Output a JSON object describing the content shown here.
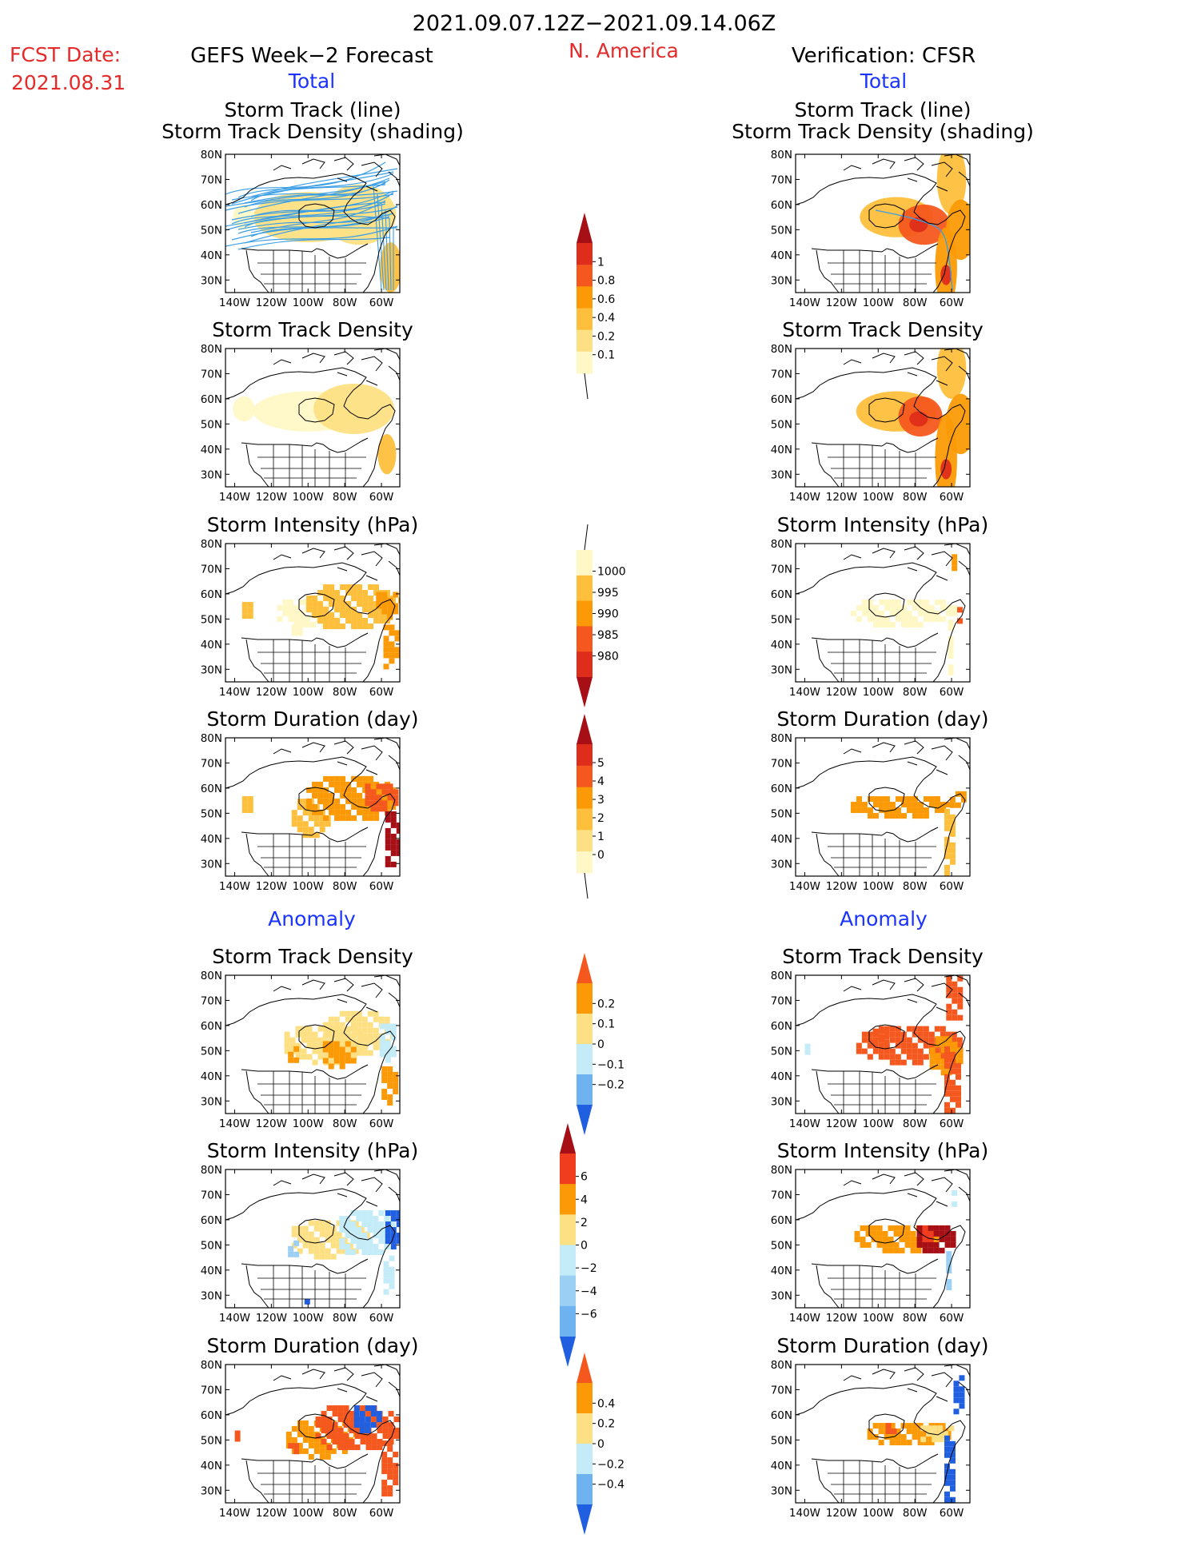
{
  "header": {
    "date_range": "2021.09.07.12Z−2021.09.14.06Z",
    "region": "N. America",
    "fcst_label": "FCST Date:",
    "fcst_date": "2021.08.31",
    "left_title": "GEFS Week−2 Forecast",
    "right_title": "Verification: CFSR"
  },
  "sections": {
    "total": "Total",
    "anomaly": "Anomaly"
  },
  "panel_titles": {
    "track": [
      "Storm Track (line)",
      "Storm Track Density (shading)"
    ],
    "density": "Storm Track Density",
    "intensity": "Storm Intensity (hPa)",
    "duration": "Storm Duration (day)"
  },
  "map_ticks": {
    "lat": [
      "80N",
      "70N",
      "60N",
      "50N",
      "40N",
      "30N"
    ],
    "lon": [
      "140W",
      "120W",
      "100W",
      "80W",
      "60W"
    ]
  },
  "colorbars": [
    {
      "id": "density_total",
      "labels": [
        "1",
        "0.8",
        "0.6",
        "0.4",
        "0.2",
        "0.1"
      ],
      "colors": [
        "#a50f15",
        "#de2d1a",
        "#f5581f",
        "#fb9a06",
        "#fdbf3c",
        "#fde084",
        "#fff8c6"
      ]
    },
    {
      "id": "intensity_total",
      "labels": [
        "1000",
        "995",
        "990",
        "985",
        "980"
      ],
      "colors": [
        "#fff8c6",
        "#fdbf3c",
        "#fb9a06",
        "#f5581f",
        "#de2d1a",
        "#a50f15"
      ]
    },
    {
      "id": "duration_total",
      "labels": [
        "5",
        "4",
        "3",
        "2",
        "1",
        "0"
      ],
      "colors": [
        "#a50f15",
        "#de2d1a",
        "#f5581f",
        "#fb9a06",
        "#fdbf3c",
        "#fde084",
        "#fff8c6"
      ]
    },
    {
      "id": "density_anom",
      "labels": [
        "0.2",
        "0.1",
        "0",
        "−0.1",
        "−0.2"
      ],
      "colors": [
        "#f5581f",
        "#fb9a06",
        "#fde084",
        "#c4ecf8",
        "#6eb3f0",
        "#2060e0"
      ]
    },
    {
      "id": "intensity_anom",
      "labels": [
        "6",
        "4",
        "2",
        "0",
        "−2",
        "−4",
        "−6"
      ],
      "colors": [
        "#a50f15",
        "#f03c1f",
        "#fb9a06",
        "#fde084",
        "#c4ecf8",
        "#9ccff4",
        "#6eb3f0",
        "#2060e0"
      ]
    },
    {
      "id": "duration_anom",
      "labels": [
        "0.4",
        "0.2",
        "0",
        "−0.2",
        "−0.4"
      ],
      "colors": [
        "#f5581f",
        "#fb9a06",
        "#fde084",
        "#c4ecf8",
        "#6eb3f0",
        "#2060e0"
      ]
    }
  ],
  "chart_data": {
    "type": "heatmap",
    "projection": "lat-lon map of North America, 140W–50W, 25N–80N",
    "lat_range": [
      25,
      80
    ],
    "lon_range": [
      -145,
      -50
    ],
    "columns": [
      "GEFS Week−2 Forecast",
      "Verification: CFSR"
    ],
    "panels": [
      {
        "section": "Total",
        "field": "Storm Track (line) / Storm Track Density (shading)",
        "forecast": {
          "max": 0.4,
          "core": [
            [
              -95,
              55
            ],
            [
              -70,
              57
            ]
          ]
        },
        "verification": {
          "max": 1,
          "core": [
            [
              -75,
              52
            ],
            [
              -63,
              33
            ]
          ]
        }
      },
      {
        "section": "Total",
        "field": "Storm Track Density",
        "forecast": {
          "max": 0.4,
          "core": [
            [
              -92,
              55
            ],
            [
              -60,
              35
            ]
          ]
        },
        "verification": {
          "max": 1,
          "core": [
            [
              -75,
              52
            ],
            [
              -63,
              32
            ],
            [
              -60,
              72
            ]
          ]
        }
      },
      {
        "section": "Total",
        "field": "Storm Intensity (hPa)",
        "forecast": {
          "min": 990,
          "core": [
            [
              -75,
              55
            ],
            [
              -55,
              40
            ]
          ]
        },
        "verification": {
          "min": 995,
          "core": [
            [
              -75,
              53
            ]
          ]
        }
      },
      {
        "section": "Total",
        "field": "Storm Duration (day)",
        "forecast": {
          "max": 5,
          "core": [
            [
              -75,
              56
            ],
            [
              -55,
              38
            ]
          ]
        },
        "verification": {
          "max": 3,
          "core": [
            [
              -80,
              52
            ]
          ]
        }
      },
      {
        "section": "Anomaly",
        "field": "Storm Track Density",
        "forecast": {
          "range": [
            -0.1,
            0.2
          ]
        },
        "verification": {
          "range": [
            -0.1,
            0.2
          ]
        }
      },
      {
        "section": "Anomaly",
        "field": "Storm Intensity (hPa)",
        "forecast": {
          "range": [
            -6,
            2
          ]
        },
        "verification": {
          "range": [
            -4,
            6
          ]
        }
      },
      {
        "section": "Anomaly",
        "field": "Storm Duration (day)",
        "forecast": {
          "range": [
            -0.2,
            0.4
          ]
        },
        "verification": {
          "range": [
            -0.4,
            0.4
          ]
        }
      }
    ]
  }
}
